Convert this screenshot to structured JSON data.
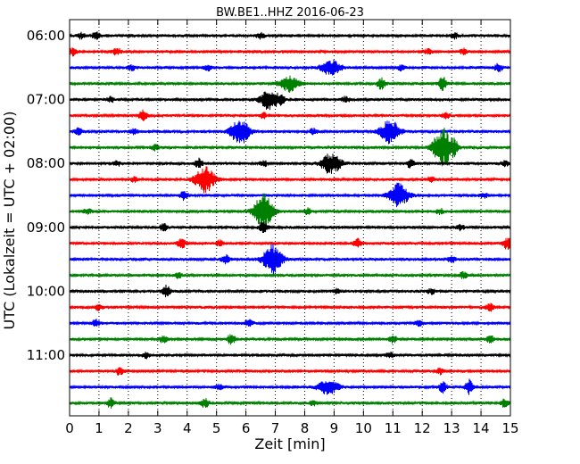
{
  "chart_data": {
    "type": "line",
    "title": "BW.BE1..HHZ 2016-06-23",
    "xlabel": "Zeit  [min]",
    "ylabel": "UTC (Lokalzeit = UTC + 02:00)",
    "xlim": [
      0,
      15
    ],
    "x_ticks": [
      "0",
      "1",
      "2",
      "3",
      "4",
      "5",
      "6",
      "7",
      "8",
      "9",
      "10",
      "11",
      "12",
      "13",
      "14",
      "15"
    ],
    "y_tick_labels": [
      "06:00",
      "07:00",
      "08:00",
      "09:00",
      "10:00",
      "11:00"
    ],
    "y_tick_rows": [
      0,
      4,
      8,
      12,
      16,
      20
    ],
    "grid": "vertical dotted at each minute",
    "row_interval_minutes": 15,
    "color_cycle": [
      "#000000",
      "#ff0000",
      "#0000ff",
      "#008000"
    ],
    "series": [
      {
        "start": "06:00",
        "events": [
          [
            0.4,
            3
          ],
          [
            0.9,
            4
          ],
          [
            6.5,
            3
          ],
          [
            13.1,
            3
          ]
        ]
      },
      {
        "start": "06:15",
        "events": [
          [
            0.1,
            4
          ],
          [
            1.6,
            4
          ],
          [
            12.2,
            3
          ],
          [
            13.4,
            3
          ]
        ]
      },
      {
        "start": "06:30",
        "events": [
          [
            2.1,
            3
          ],
          [
            4.7,
            3
          ],
          [
            8.9,
            9
          ],
          [
            11.3,
            3
          ],
          [
            14.6,
            5
          ]
        ]
      },
      {
        "start": "06:45",
        "events": [
          [
            7.5,
            9
          ],
          [
            10.6,
            6
          ],
          [
            12.7,
            8
          ]
        ]
      },
      {
        "start": "07:00",
        "events": [
          [
            1.4,
            3
          ],
          [
            6.8,
            11
          ],
          [
            7.2,
            4
          ],
          [
            9.4,
            3
          ]
        ]
      },
      {
        "start": "07:15",
        "events": [
          [
            2.5,
            6
          ],
          [
            6.6,
            3
          ],
          [
            12.8,
            3
          ]
        ]
      },
      {
        "start": "07:30",
        "events": [
          [
            0.3,
            4
          ],
          [
            2.2,
            3
          ],
          [
            5.8,
            14
          ],
          [
            8.3,
            3
          ],
          [
            10.9,
            13
          ]
        ]
      },
      {
        "start": "07:45",
        "events": [
          [
            12.7,
            22
          ],
          [
            13.1,
            5
          ],
          [
            2.9,
            3
          ]
        ]
      },
      {
        "start": "08:00",
        "events": [
          [
            1.6,
            3
          ],
          [
            4.4,
            5
          ],
          [
            6.6,
            3
          ],
          [
            8.9,
            12
          ],
          [
            11.6,
            5
          ],
          [
            14.8,
            3
          ]
        ]
      },
      {
        "start": "08:15",
        "events": [
          [
            4.6,
            15
          ],
          [
            2.2,
            3
          ],
          [
            12.3,
            3
          ]
        ]
      },
      {
        "start": "08:30",
        "events": [
          [
            3.9,
            5
          ],
          [
            11.2,
            14
          ],
          [
            14.1,
            3
          ]
        ]
      },
      {
        "start": "08:45",
        "events": [
          [
            0.6,
            3
          ],
          [
            6.6,
            20
          ],
          [
            8.1,
            3
          ],
          [
            12.6,
            3
          ]
        ]
      },
      {
        "start": "09:00",
        "events": [
          [
            3.2,
            4
          ],
          [
            6.6,
            8
          ],
          [
            13.3,
            3
          ]
        ]
      },
      {
        "start": "09:15",
        "events": [
          [
            3.8,
            6
          ],
          [
            5.1,
            3
          ],
          [
            9.8,
            5
          ],
          [
            14.9,
            7
          ]
        ]
      },
      {
        "start": "09:30",
        "events": [
          [
            5.3,
            5
          ],
          [
            6.9,
            16
          ],
          [
            13.0,
            4
          ]
        ]
      },
      {
        "start": "09:45",
        "events": [
          [
            3.7,
            3
          ],
          [
            13.4,
            4
          ]
        ]
      },
      {
        "start": "10:00",
        "events": [
          [
            3.3,
            7
          ],
          [
            9.1,
            3
          ],
          [
            12.3,
            3
          ]
        ]
      },
      {
        "start": "10:15",
        "events": [
          [
            1.0,
            3
          ],
          [
            14.3,
            4
          ]
        ]
      },
      {
        "start": "10:30",
        "events": [
          [
            0.9,
            4
          ],
          [
            6.1,
            4
          ],
          [
            11.9,
            3
          ]
        ]
      },
      {
        "start": "10:45",
        "events": [
          [
            3.2,
            4
          ],
          [
            5.5,
            6
          ],
          [
            11.0,
            4
          ],
          [
            14.3,
            4
          ]
        ]
      },
      {
        "start": "11:00",
        "events": [
          [
            2.6,
            3
          ],
          [
            10.9,
            3
          ]
        ]
      },
      {
        "start": "11:15",
        "events": [
          [
            1.7,
            4
          ],
          [
            12.6,
            3
          ]
        ]
      },
      {
        "start": "11:30",
        "events": [
          [
            5.1,
            3
          ],
          [
            8.8,
            10
          ],
          [
            12.7,
            6
          ],
          [
            13.6,
            8
          ]
        ]
      },
      {
        "start": "11:45",
        "events": [
          [
            1.4,
            5
          ],
          [
            4.6,
            5
          ],
          [
            8.3,
            3
          ],
          [
            14.8,
            4
          ]
        ]
      }
    ]
  }
}
